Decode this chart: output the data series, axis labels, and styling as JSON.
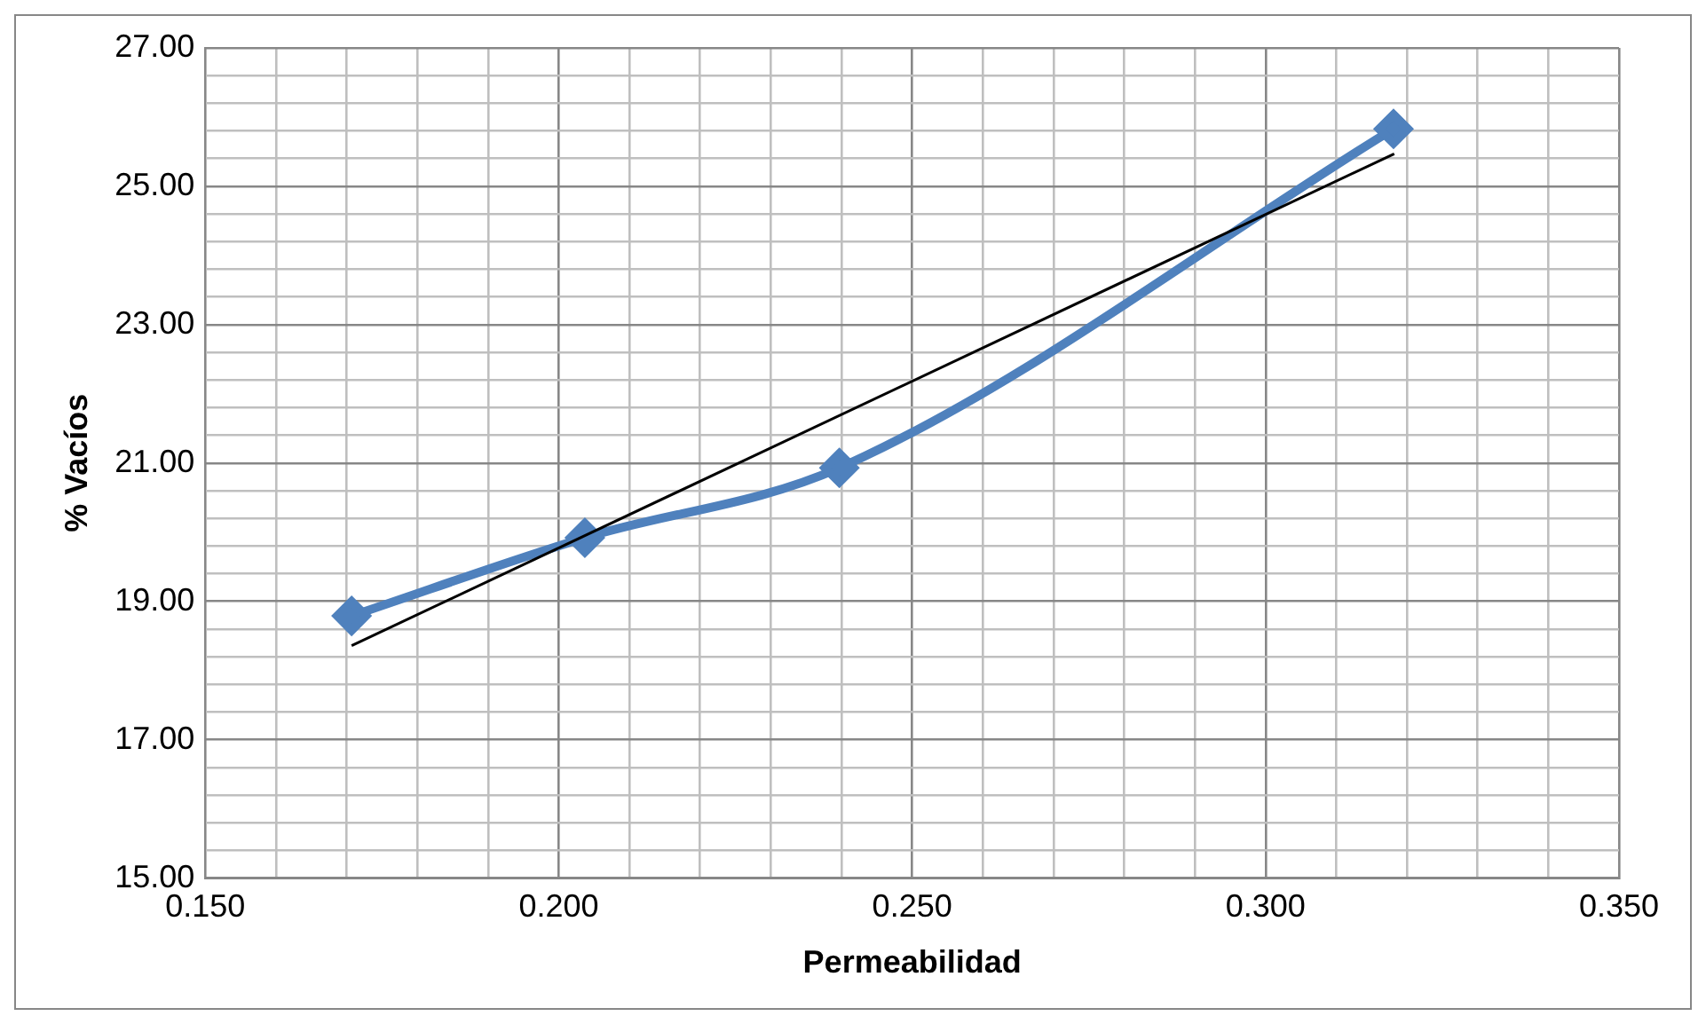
{
  "chart_data": {
    "type": "line",
    "xlabel": "Permeabilidad",
    "ylabel": "% Vacíos",
    "series": [
      {
        "type": "line",
        "color": "#4f81bd",
        "marker": "diamond",
        "x": [
          0.1707,
          0.2037,
          0.2397,
          0.3181
        ],
        "values": [
          18.79,
          19.92,
          20.93,
          25.83
        ]
      },
      {
        "type": "line",
        "color": "#000000",
        "marker": "none",
        "x": [
          0.1707,
          0.3182
        ],
        "values": [
          18.36,
          25.47
        ]
      }
    ],
    "xlim": [
      0.15,
      0.35
    ],
    "ylim": [
      15,
      27
    ],
    "xticks": [
      {
        "value": 0.15,
        "label": "0.150"
      },
      {
        "value": 0.16,
        "label": null
      },
      {
        "value": 0.17,
        "label": null
      },
      {
        "value": 0.18,
        "label": null
      },
      {
        "value": 0.19,
        "label": null
      },
      {
        "value": 0.2,
        "label": "0.200"
      },
      {
        "value": 0.21,
        "label": null
      },
      {
        "value": 0.22,
        "label": null
      },
      {
        "value": 0.23,
        "label": null
      },
      {
        "value": 0.24,
        "label": null
      },
      {
        "value": 0.25,
        "label": "0.250"
      },
      {
        "value": 0.26,
        "label": null
      },
      {
        "value": 0.27,
        "label": null
      },
      {
        "value": 0.28,
        "label": null
      },
      {
        "value": 0.29,
        "label": null
      },
      {
        "value": 0.3,
        "label": "0.300"
      },
      {
        "value": 0.31,
        "label": null
      },
      {
        "value": 0.32,
        "label": null
      },
      {
        "value": 0.33,
        "label": null
      },
      {
        "value": 0.34,
        "label": null
      },
      {
        "value": 0.35,
        "label": "0.350"
      }
    ],
    "yticks": [
      {
        "value": 15,
        "label": "15.00"
      },
      {
        "value": 15.4,
        "label": null
      },
      {
        "value": 15.8,
        "label": null
      },
      {
        "value": 16.2,
        "label": null
      },
      {
        "value": 16.6,
        "label": null
      },
      {
        "value": 17,
        "label": "17.00"
      },
      {
        "value": 17.4,
        "label": null
      },
      {
        "value": 17.8,
        "label": null
      },
      {
        "value": 18.2,
        "label": null
      },
      {
        "value": 18.6,
        "label": null
      },
      {
        "value": 19,
        "label": "19.00"
      },
      {
        "value": 19.4,
        "label": null
      },
      {
        "value": 19.8,
        "label": null
      },
      {
        "value": 20.2,
        "label": null
      },
      {
        "value": 20.6,
        "label": null
      },
      {
        "value": 21,
        "label": "21.00"
      },
      {
        "value": 21.4,
        "label": null
      },
      {
        "value": 21.8,
        "label": null
      },
      {
        "value": 22.2,
        "label": null
      },
      {
        "value": 22.6,
        "label": null
      },
      {
        "value": 23,
        "label": "23.00"
      },
      {
        "value": 23.4,
        "label": null
      },
      {
        "value": 23.8,
        "label": null
      },
      {
        "value": 24.2,
        "label": null
      },
      {
        "value": 24.6,
        "label": null
      },
      {
        "value": 25,
        "label": "25.00"
      },
      {
        "value": 25.4,
        "label": null
      },
      {
        "value": 25.8,
        "label": null
      },
      {
        "value": 26.2,
        "label": null
      },
      {
        "value": 26.6,
        "label": null
      },
      {
        "value": 27,
        "label": "27.00"
      }
    ],
    "grid": true,
    "legend": false
  }
}
